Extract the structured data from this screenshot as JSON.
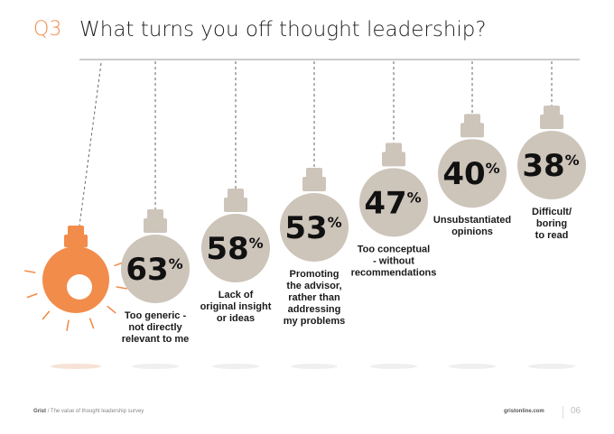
{
  "header": {
    "question_number": "Q3",
    "title": "What turns you off thought leadership?"
  },
  "chart_data": {
    "type": "bar",
    "categories": [
      [
        "Too generic -",
        "not directly",
        "relevant to me"
      ],
      [
        "Lack of",
        "original insight",
        "or ideas"
      ],
      [
        "Promoting",
        "the advisor,",
        "rather than",
        "addressing",
        "my problems"
      ],
      [
        "Too conceptual",
        "- without",
        "recommendations"
      ],
      [
        "Unsubstantiated",
        "opinions"
      ],
      [
        "Difficult/",
        "boring",
        "to read"
      ]
    ],
    "values": [
      63,
      58,
      53,
      47,
      40,
      38
    ],
    "value_labels": [
      "63",
      "58",
      "53",
      "47",
      "40",
      "38"
    ],
    "unit": "%",
    "title": "What turns you off thought leadership?"
  },
  "colors": {
    "bulb": "#cdc4ba",
    "highlight_bulb": "#f28c4b",
    "value_text": "#111111",
    "accent": "#f28c4b"
  },
  "icons": [
    "lit-bulb-icon",
    "bulb-icon"
  ],
  "footer": {
    "brand": "Grist",
    "subtitle": "/ The value of thought leadership survey",
    "url": "gristonline.com",
    "page": "06"
  }
}
